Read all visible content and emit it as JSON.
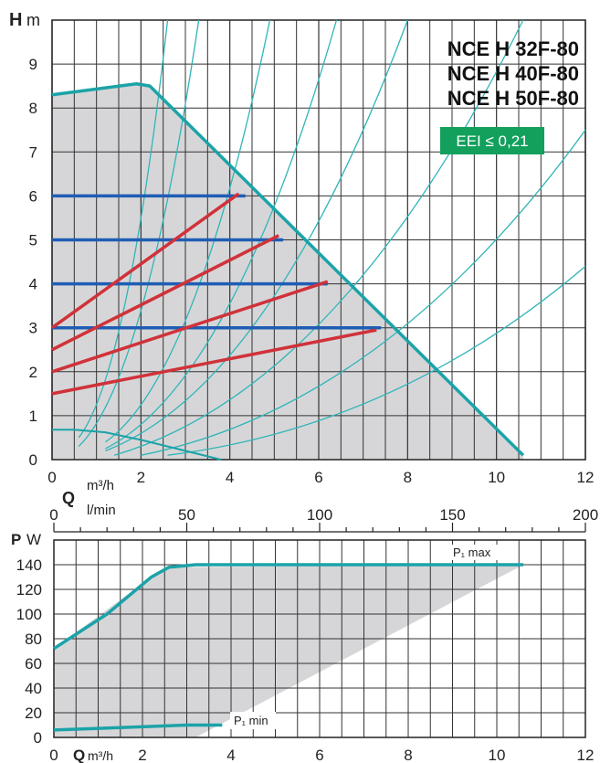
{
  "chart_data": [
    {
      "type": "line",
      "y_axis_label": "H",
      "y_axis_unit": "m",
      "x_axis_label": "Q",
      "x_axis_unit": "m³/h",
      "xlim": [
        0,
        12
      ],
      "ylim": [
        0,
        10
      ],
      "x_ticks": [
        "0",
        "2",
        "4",
        "6",
        "8",
        "10",
        "12"
      ],
      "y_ticks": [
        "0",
        "1",
        "2",
        "3",
        "4",
        "5",
        "6",
        "7",
        "8",
        "9"
      ],
      "grid": true,
      "model_lines": [
        "NCE H 32F-80",
        "NCE H 40F-80",
        "NCE H 50F-80"
      ],
      "eei_badge": "EEI ≤ 0,21",
      "colors": {
        "max_curve": "#1ba3a8",
        "constant_pressure": "#1f5db5",
        "proportional_pressure": "#d0323a",
        "system_curves": "#2fb5b8",
        "area": "#d6d6d8",
        "badge": "#12a05c"
      },
      "max_curve": {
        "x": [
          0,
          1.9,
          2.2,
          10.6
        ],
        "y": [
          8.3,
          8.55,
          8.5,
          0.1
        ]
      },
      "min_curve": {
        "x": [
          0,
          0.5,
          1.2,
          2.0,
          3.0,
          3.8
        ],
        "y": [
          0.68,
          0.68,
          0.62,
          0.45,
          0.2,
          0.0
        ]
      },
      "constant_pressure_levels": [
        {
          "y": 6,
          "x_end": 4.35
        },
        {
          "y": 5,
          "x_end": 5.2
        },
        {
          "y": 4,
          "x_end": 6.2
        },
        {
          "y": 3,
          "x_end": 7.4
        }
      ],
      "proportional_pressure": [
        {
          "x": [
            0,
            4.2
          ],
          "y": [
            3.0,
            6.05
          ]
        },
        {
          "x": [
            0,
            5.1
          ],
          "y": [
            2.5,
            5.1
          ]
        },
        {
          "x": [
            0,
            6.2
          ],
          "y": [
            2.0,
            4.05
          ]
        },
        {
          "x": [
            0,
            7.3
          ],
          "y": [
            1.5,
            2.95
          ]
        }
      ],
      "system_curves": [
        {
          "x": [
            0.6,
            2.6
          ],
          "y": [
            0.5,
            10
          ]
        },
        {
          "x": [
            0.6,
            3.3
          ],
          "y": [
            0.3,
            10
          ]
        },
        {
          "x": [
            1.2,
            4.9
          ],
          "y": [
            0.4,
            10
          ]
        },
        {
          "x": [
            1.2,
            6.4
          ],
          "y": [
            0.25,
            10
          ]
        },
        {
          "x": [
            1.2,
            8.0
          ],
          "y": [
            0.2,
            10
          ]
        },
        {
          "x": [
            1.4,
            10.6
          ],
          "y": [
            0.1,
            10
          ]
        },
        {
          "x": [
            2.0,
            12
          ],
          "y": [
            0.1,
            7.5
          ]
        },
        {
          "x": [
            2.6,
            12
          ],
          "y": [
            0.1,
            4.4
          ]
        }
      ]
    },
    {
      "type": "line",
      "y_axis_label": "P",
      "y_axis_unit": "W",
      "x_axis_label": "Q",
      "x_axis_unit": "m³/h",
      "secondary_x_unit": "l/min",
      "xlim": [
        0,
        12
      ],
      "ylim": [
        0,
        160
      ],
      "x_ticks": [
        "0",
        "2",
        "4",
        "6",
        "8",
        "10",
        "12"
      ],
      "secondary_x_ticks": [
        "0",
        "50",
        "100",
        "150",
        "200"
      ],
      "secondary_xlim": [
        0,
        200
      ],
      "y_ticks": [
        "0",
        "20",
        "40",
        "60",
        "80",
        "100",
        "120",
        "140"
      ],
      "grid": true,
      "series": [
        {
          "name": "P₁ max",
          "x": [
            0,
            1.2,
            2.2,
            2.6,
            3.2,
            10.6
          ],
          "y": [
            72,
            100,
            130,
            138,
            140,
            140
          ]
        },
        {
          "name": "P₁ min",
          "x": [
            0,
            1.5,
            3.0,
            3.8
          ],
          "y": [
            6,
            8,
            10,
            10
          ]
        }
      ],
      "area": {
        "x": [
          0,
          2.2,
          2.6,
          10.6,
          3.2,
          0
        ],
        "y": [
          72,
          130,
          138,
          140,
          0,
          0
        ]
      }
    }
  ]
}
